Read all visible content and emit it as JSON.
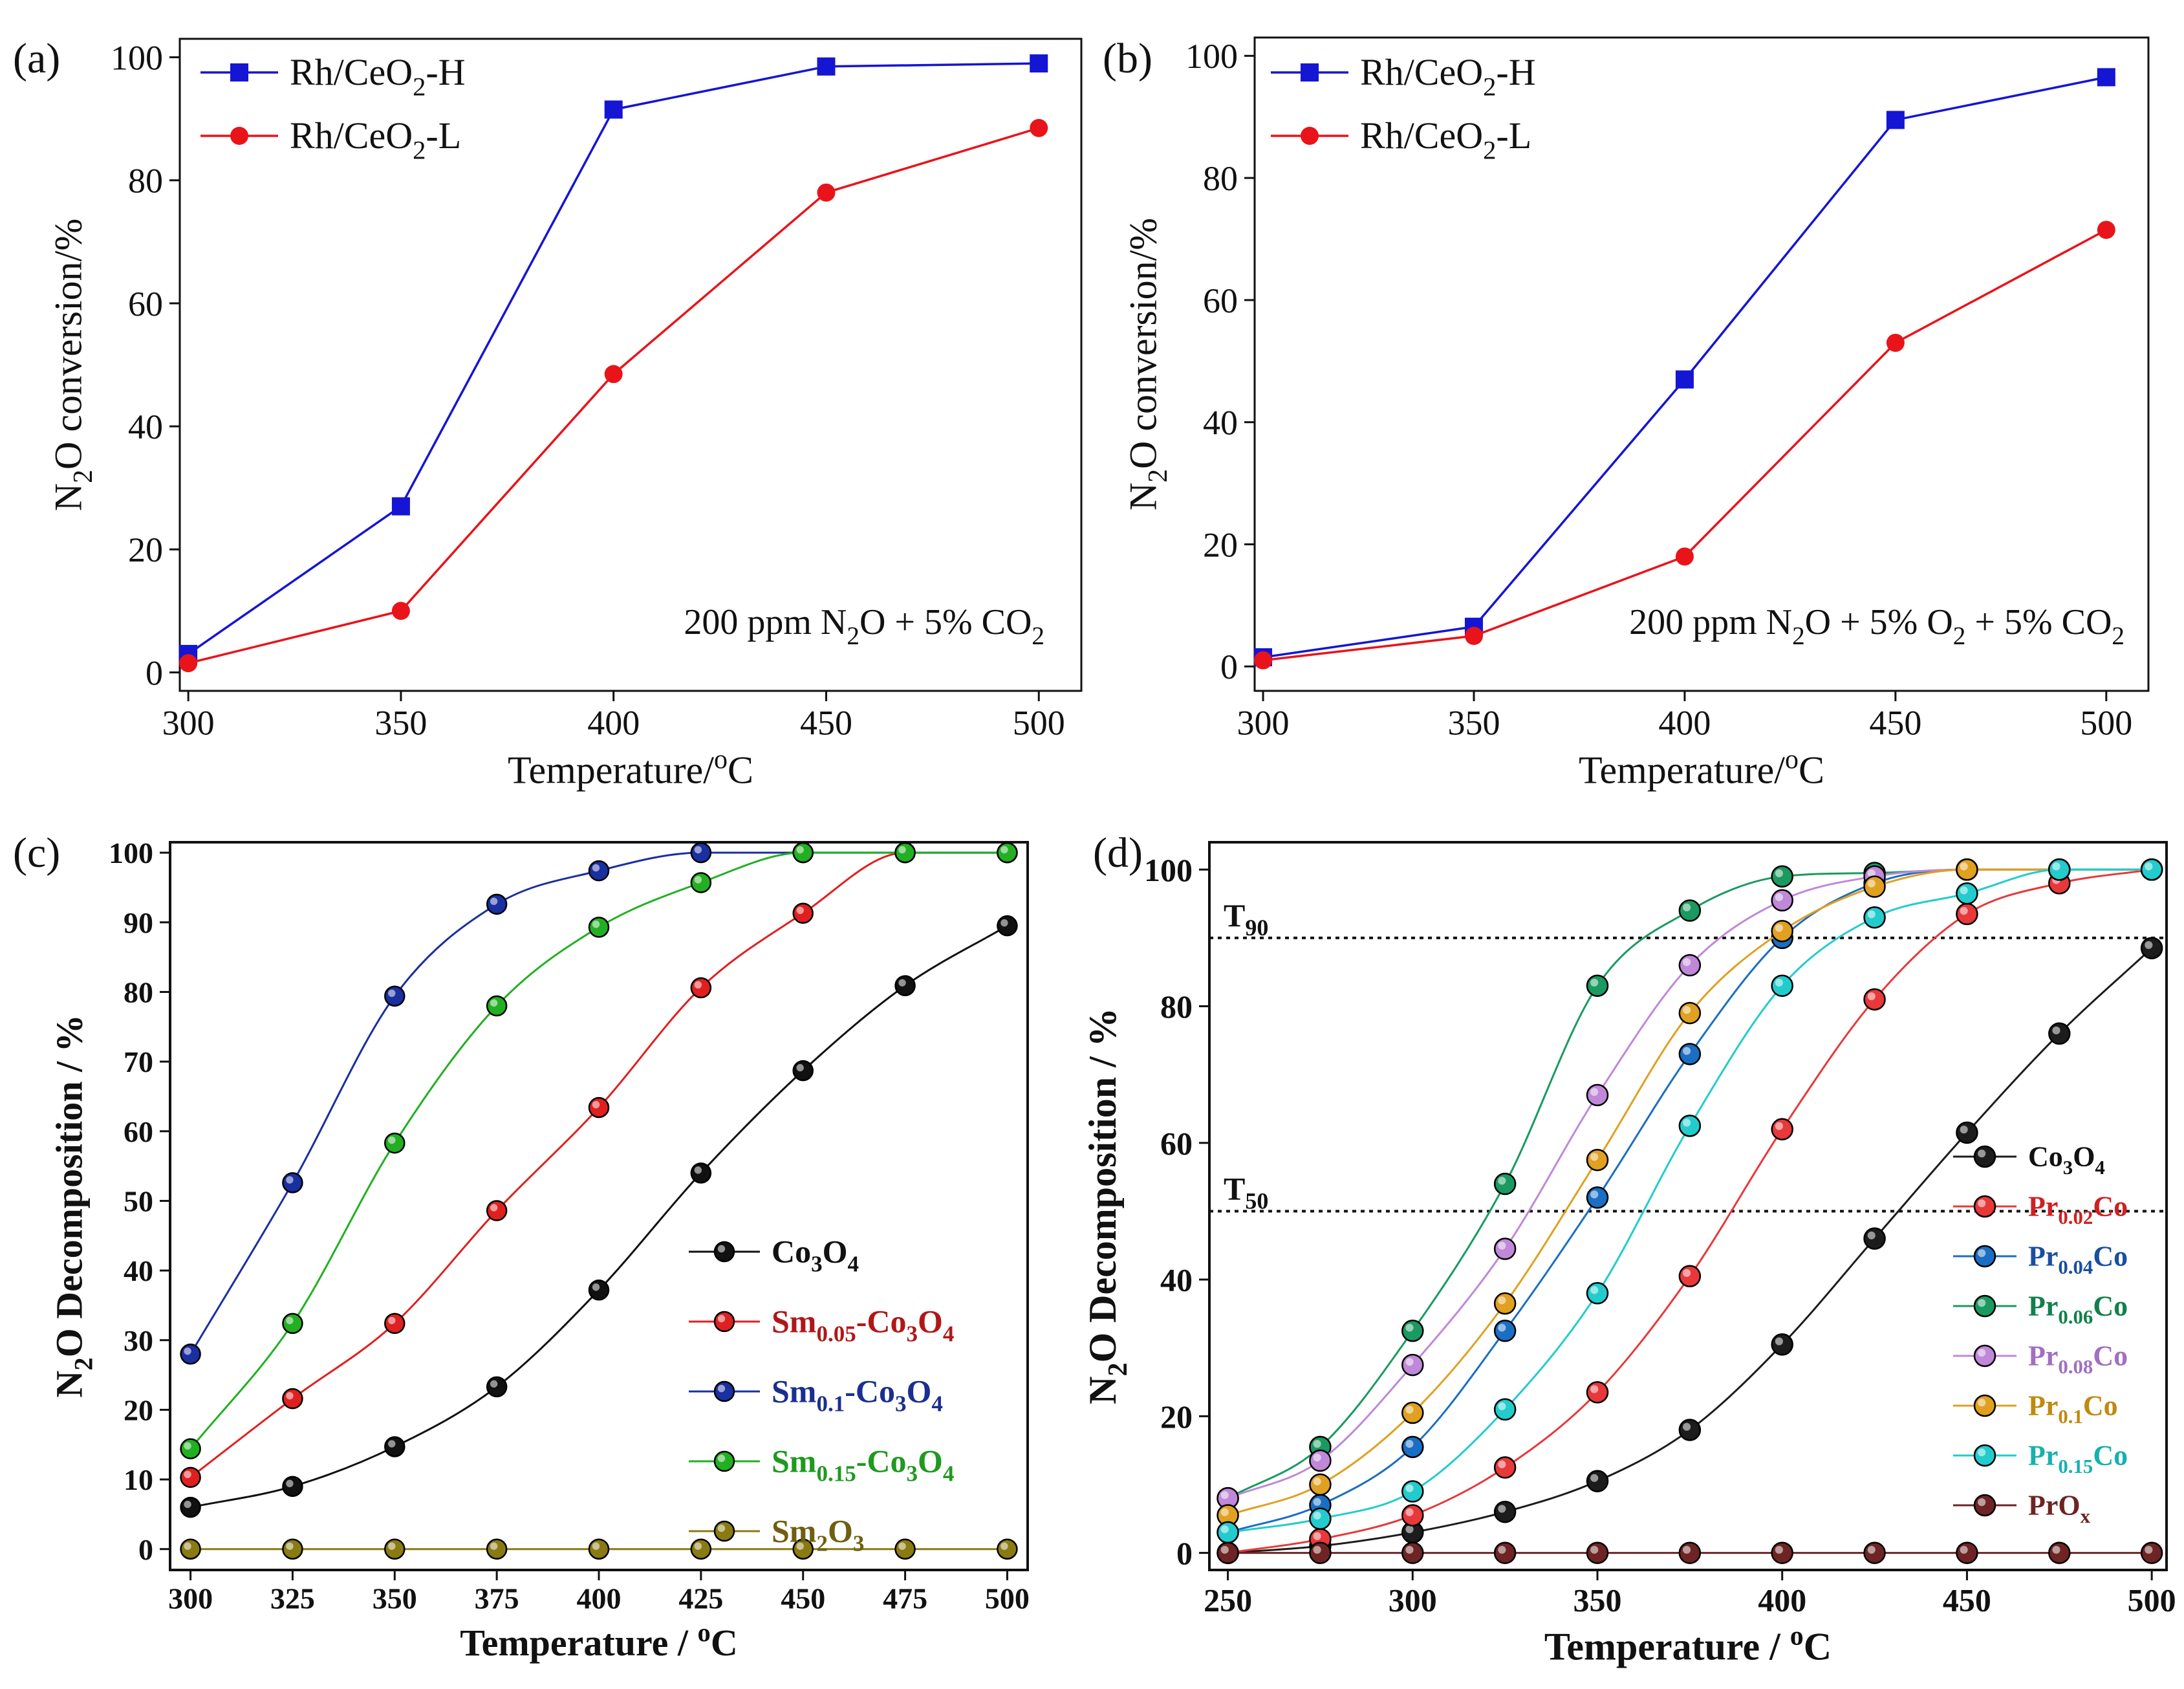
{
  "chart_data": [
    {
      "panel": "a",
      "panel_label": "(a)",
      "type": "line",
      "font_weight": "normal",
      "xlabel": "Temperature/",
      "xlabel_unit": "oC",
      "ylabel": "N2O conversion/%",
      "xlim": [
        298,
        510
      ],
      "ylim": [
        -3,
        103
      ],
      "xticks": [
        300,
        350,
        400,
        450,
        500
      ],
      "yticks": [
        0,
        20,
        40,
        60,
        80,
        100
      ],
      "grid": false,
      "legend_position": "top-left",
      "annotation": "200 ppm N2O + 5% CO2",
      "x": [
        300,
        350,
        400,
        450,
        500
      ],
      "series": [
        {
          "name": "Rh/CeO2-H",
          "color": "#1515d4",
          "marker": "square",
          "values": [
            3,
            27,
            91.5,
            98.5,
            99
          ]
        },
        {
          "name": "Rh/CeO2-L",
          "color": "#e8141a",
          "marker": "circle",
          "values": [
            1.5,
            10,
            48.5,
            78,
            88.5
          ]
        }
      ]
    },
    {
      "panel": "b",
      "panel_label": "(b)",
      "type": "line",
      "font_weight": "normal",
      "xlabel": "Temperature/",
      "xlabel_unit": "oC",
      "ylabel": "N2O conversion/%",
      "xlim": [
        298,
        510
      ],
      "ylim": [
        -4,
        103
      ],
      "xticks": [
        300,
        350,
        400,
        450,
        500
      ],
      "yticks": [
        0,
        20,
        40,
        60,
        80,
        100
      ],
      "grid": false,
      "legend_position": "top-left",
      "annotation": "200 ppm N2O + 5% O2 + 5% CO2",
      "x": [
        300,
        350,
        400,
        450,
        500
      ],
      "series": [
        {
          "name": "Rh/CeO2-H",
          "color": "#1515d4",
          "marker": "square",
          "values": [
            1.5,
            6.5,
            47,
            89.5,
            96.5
          ]
        },
        {
          "name": "Rh/CeO2-L",
          "color": "#e8141a",
          "marker": "circle",
          "values": [
            1,
            5,
            18,
            53,
            71.5
          ]
        }
      ]
    },
    {
      "panel": "c",
      "panel_label": "(c)",
      "type": "line",
      "font_weight": "bold",
      "xlabel": "Temperature / ",
      "xlabel_unit": "oC",
      "ylabel": "N2O Decomposition / %",
      "xlim": [
        295,
        505
      ],
      "ylim": [
        -3,
        101.5
      ],
      "xticks": [
        300,
        325,
        350,
        375,
        400,
        425,
        450,
        475,
        500
      ],
      "yticks": [
        0,
        10,
        20,
        30,
        40,
        50,
        60,
        70,
        80,
        90,
        100
      ],
      "grid": false,
      "legend_position": "lower-right",
      "x": [
        300,
        325,
        350,
        375,
        400,
        425,
        450,
        475,
        500
      ],
      "series": [
        {
          "name": "Co3O4",
          "color": "#111111",
          "label_color": "#111111",
          "values": [
            6,
            9,
            14.7,
            23.3,
            37.2,
            54,
            68.7,
            80.9,
            89.5
          ]
        },
        {
          "name": "Sm0.05-Co3O4",
          "color": "#e02020",
          "label_color": "#b01818",
          "values": [
            10.3,
            21.6,
            32.4,
            48.6,
            63.4,
            80.6,
            91.3,
            100,
            100
          ]
        },
        {
          "name": "Sm0.1-Co3O4",
          "color": "#1a2fa0",
          "label_color": "#1a2f90",
          "values": [
            28,
            52.6,
            79.4,
            92.6,
            97.4,
            100,
            100,
            100,
            100
          ]
        },
        {
          "name": "Sm0.15-Co3O4",
          "color": "#22b022",
          "label_color": "#1e9a1e",
          "values": [
            14.4,
            32.4,
            58.3,
            78,
            89.3,
            95.7,
            100,
            100,
            100
          ]
        },
        {
          "name": "Sm2O3",
          "color": "#8a7a12",
          "label_color": "#6e6010",
          "values": [
            0,
            0,
            0,
            0,
            0,
            0,
            0,
            0,
            0
          ]
        }
      ]
    },
    {
      "panel": "d",
      "panel_label": "(d)",
      "type": "line",
      "font_weight": "bold",
      "xlabel": "Temperature / ",
      "xlabel_unit": "oC",
      "ylabel": "N2O Decomposition / %",
      "xlim": [
        245,
        504
      ],
      "ylim": [
        -2.5,
        104
      ],
      "xticks": [
        250,
        300,
        350,
        400,
        450,
        500
      ],
      "yticks": [
        0,
        20,
        40,
        60,
        80,
        100
      ],
      "grid": false,
      "legend_position": "lower-right",
      "reference_lines": [
        {
          "label": "T90",
          "y": 90
        },
        {
          "label": "T50",
          "y": 50
        }
      ],
      "x": [
        250,
        275,
        300,
        325,
        350,
        375,
        400,
        425,
        450,
        475,
        500
      ],
      "series": [
        {
          "name": "Co3O4",
          "color": "#1c1c1c",
          "label_color": "#111111",
          "values": [
            0,
            1,
            3,
            6,
            10.5,
            18,
            30.5,
            46,
            61.5,
            76,
            88.5
          ]
        },
        {
          "name": "Pr0.02Co",
          "color": "#e8383a",
          "label_color": "#d02020",
          "values": [
            0,
            2,
            5.5,
            12.5,
            23.5,
            40.5,
            62,
            81,
            93.5,
            98,
            100
          ]
        },
        {
          "name": "Pr0.04Co",
          "color": "#1a6ec4",
          "label_color": "#1a4ea0",
          "values": [
            3,
            7,
            15.5,
            32.5,
            52,
            73,
            90,
            98,
            100,
            100,
            100
          ]
        },
        {
          "name": "Pr0.06Co",
          "color": "#1a9a60",
          "label_color": "#12804c",
          "values": [
            8,
            15.5,
            32.5,
            54,
            83,
            94,
            99,
            99.5,
            100,
            100,
            100
          ]
        },
        {
          "name": "Pr0.08Co",
          "color": "#c088d8",
          "label_color": "#a070c0",
          "values": [
            8,
            13.5,
            27.5,
            44.5,
            67,
            86,
            95.5,
            99,
            100,
            100,
            100
          ]
        },
        {
          "name": "Pr0.1Co",
          "color": "#e0a020",
          "label_color": "#c08a10",
          "values": [
            5.5,
            10,
            20.5,
            36.5,
            57.5,
            79,
            91,
            97.5,
            100,
            100,
            100
          ]
        },
        {
          "name": "Pr0.15Co",
          "color": "#22cccc",
          "label_color": "#18b0b0",
          "values": [
            3,
            5,
            9,
            21,
            38,
            62.5,
            83,
            93,
            96.5,
            100,
            100
          ]
        },
        {
          "name": "PrOx",
          "color": "#6e2424",
          "label_color": "#6e2424",
          "values": [
            0,
            0,
            0,
            0,
            0,
            0,
            0,
            0,
            0,
            0,
            0
          ]
        }
      ]
    }
  ]
}
